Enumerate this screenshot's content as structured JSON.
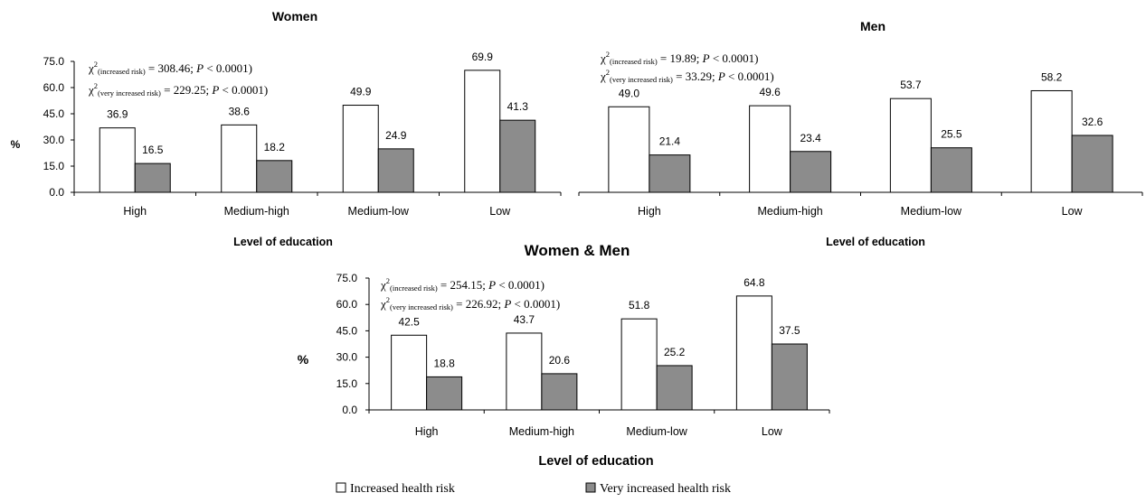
{
  "colors": {
    "increased": "#ffffff",
    "very_increased": "#8c8c8c",
    "stroke": "#000000"
  },
  "legend": [
    {
      "label": "Increased health risk",
      "color": "#ffffff"
    },
    {
      "label": "Very increased health risk",
      "color": "#8c8c8c"
    }
  ],
  "chart_data": [
    {
      "type": "bar",
      "title": "Women",
      "xlabel": "Level of education",
      "ylabel": "%",
      "ylim": [
        0,
        75
      ],
      "yticks": [
        "0.0",
        "15.0",
        "30.0",
        "45.0",
        "60.0",
        "75.0"
      ],
      "categories": [
        "High",
        "Medium-high",
        "Medium-low",
        "Low"
      ],
      "series": [
        {
          "name": "Increased health risk",
          "values": [
            36.9,
            38.6,
            49.9,
            69.9
          ]
        },
        {
          "name": "Very increased health risk",
          "values": [
            16.5,
            18.2,
            24.9,
            41.3
          ]
        }
      ],
      "data_labels": [
        [
          "36.9",
          "38.6",
          "49.9",
          "69.9"
        ],
        [
          "16.5",
          "18.2",
          "24.9",
          "41.3"
        ]
      ],
      "stats": [
        {
          "sym": "χ",
          "sup": "2",
          "sub": "(increased risk)",
          "rest1": " = 308.46; ",
          "p": "P",
          "rest2": " < 0.0001)"
        },
        {
          "sym": "χ",
          "sup": "2",
          "sub": "(very increased risk)",
          "rest1": " = 229.25; ",
          "p": "P",
          "rest2": " < 0.0001)"
        }
      ]
    },
    {
      "type": "bar",
      "title": "Men",
      "xlabel": "Level of education",
      "ylabel": "",
      "ylim": [
        0,
        75
      ],
      "yticks": [],
      "categories": [
        "High",
        "Medium-high",
        "Medium-low",
        "Low"
      ],
      "series": [
        {
          "name": "Increased health risk",
          "values": [
            49.0,
            49.6,
            53.7,
            58.2
          ]
        },
        {
          "name": "Very increased health risk",
          "values": [
            21.4,
            23.4,
            25.5,
            32.6
          ]
        }
      ],
      "data_labels": [
        [
          "49.0",
          "49.6",
          "53.7",
          "58.2"
        ],
        [
          "21.4",
          "23.4",
          "25.5",
          "32.6"
        ]
      ],
      "stats": [
        {
          "sym": "χ",
          "sup": "2",
          "sub": "(increased risk)",
          "rest1": " = 19.89; ",
          "p": "P",
          "rest2": " < 0.0001)"
        },
        {
          "sym": "χ",
          "sup": "2",
          "sub": "(very increased risk)",
          "rest1": " = 33.29; ",
          "p": "P",
          "rest2": " < 0.0001)"
        }
      ]
    },
    {
      "type": "bar",
      "title": "Women & Men",
      "xlabel": "Level of education",
      "ylabel": "%",
      "ylim": [
        0,
        75
      ],
      "yticks": [
        "0.0",
        "15.0",
        "30.0",
        "45.0",
        "60.0",
        "75.0"
      ],
      "categories": [
        "High",
        "Medium-high",
        "Medium-low",
        "Low"
      ],
      "series": [
        {
          "name": "Increased health risk",
          "values": [
            42.5,
            43.7,
            51.8,
            64.8
          ]
        },
        {
          "name": "Very increased health risk",
          "values": [
            18.8,
            20.6,
            25.2,
            37.5
          ]
        }
      ],
      "data_labels": [
        [
          "42.5",
          "43.7",
          "51.8",
          "64.8"
        ],
        [
          "18.8",
          "20.6",
          "25.2",
          "37.5"
        ]
      ],
      "stats": [
        {
          "sym": "χ",
          "sup": "2",
          "sub": "(increased risk)",
          "rest1": " = 254.15; ",
          "p": "P",
          "rest2": " < 0.0001)"
        },
        {
          "sym": "χ",
          "sup": "2",
          "sub": "(very increased risk)",
          "rest1": " = 226.92; ",
          "p": "P",
          "rest2": " < 0.0001)"
        }
      ]
    }
  ]
}
